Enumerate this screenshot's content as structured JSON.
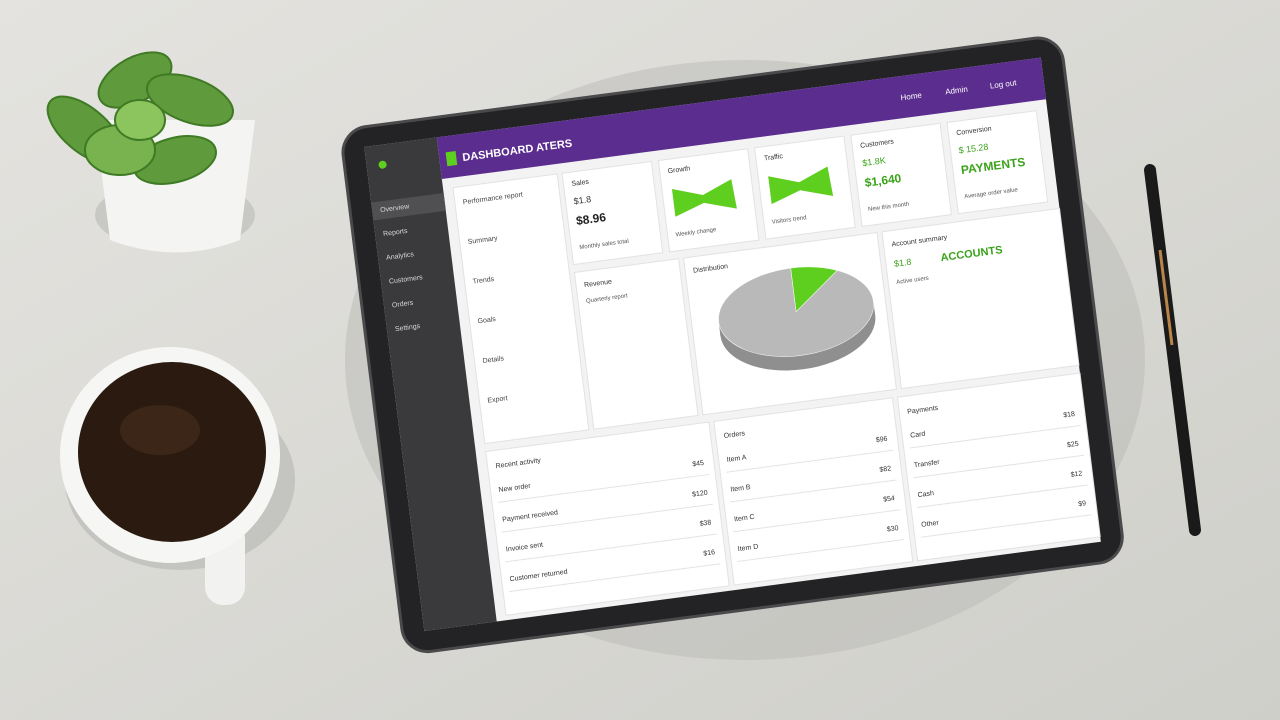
{
  "header": {
    "title": "DASHBOARD ATERS",
    "links": [
      "Home",
      "Admin",
      "Log out"
    ]
  },
  "sidebar": {
    "items": [
      "Overview",
      "Reports",
      "Analytics",
      "Customers",
      "Orders",
      "Settings"
    ]
  },
  "menu": {
    "items": [
      "Performance report",
      "Summary",
      "Trends",
      "Goals",
      "Details",
      "Export"
    ]
  },
  "cards": [
    {
      "title": "Sales",
      "value": "$1.8",
      "big": "$8.96",
      "note": "Monthly sales total"
    },
    {
      "title": "Growth",
      "note": "Weekly change"
    },
    {
      "title": "Traffic",
      "note": "Visitors trend"
    },
    {
      "title": "Customers",
      "value": "$1.8K",
      "big": "$1,640",
      "note": "New this month"
    },
    {
      "title": "Conversion",
      "value": "$ 15.28",
      "big": "PAYMENTS",
      "note": "Average order value"
    }
  ],
  "revenue": {
    "title": "Revenue",
    "note": "Quarterly report"
  },
  "pie": {
    "title": "Distribution",
    "values": [
      10,
      90
    ],
    "colors": [
      "#5fcf1f",
      "#b9b9b9"
    ]
  },
  "stats": {
    "title": "Account summary",
    "value": "$1.8",
    "big": "ACCOUNTS",
    "note": "Active users"
  },
  "tables": [
    {
      "title": "Recent activity",
      "rows": [
        [
          "New order",
          "$45"
        ],
        [
          "Payment received",
          "$120"
        ],
        [
          "Invoice sent",
          "$38"
        ],
        [
          "Customer returned",
          "$16"
        ]
      ]
    },
    {
      "title": "Orders",
      "rows": [
        [
          "Item A",
          "$96"
        ],
        [
          "Item B",
          "$82"
        ],
        [
          "Item C",
          "$54"
        ],
        [
          "Item D",
          "$30"
        ]
      ]
    },
    {
      "title": "Payments",
      "rows": [
        [
          "Card",
          "$18"
        ],
        [
          "Transfer",
          "$25"
        ],
        [
          "Cash",
          "$12"
        ],
        [
          "Other",
          "$9"
        ]
      ]
    }
  ]
}
